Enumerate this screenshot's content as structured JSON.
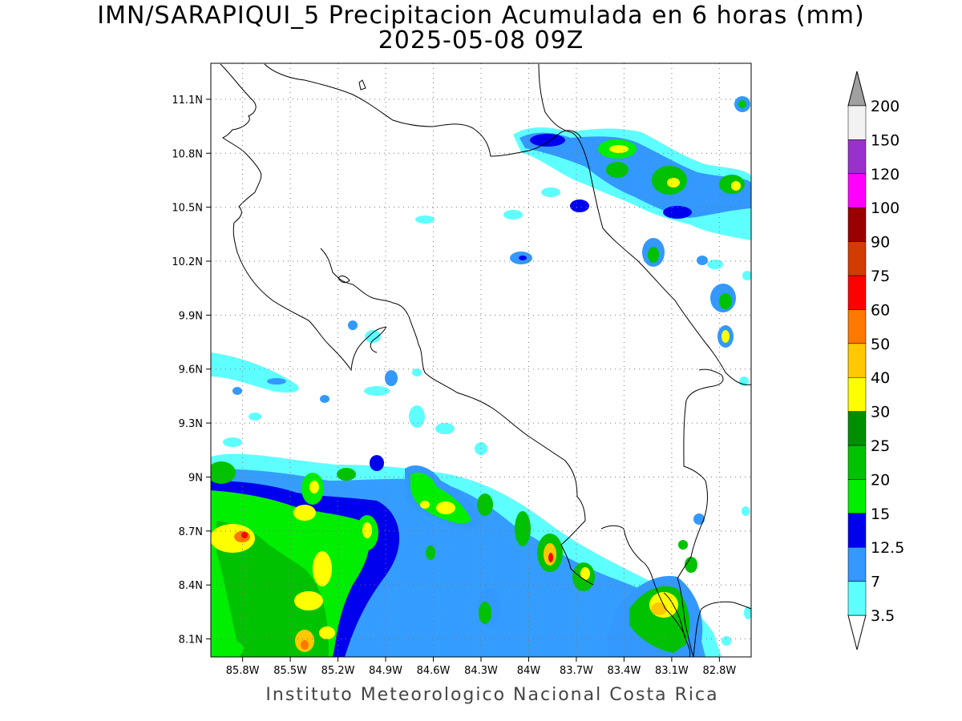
{
  "title": {
    "line1": "IMN/SARAPIQUI_5 Precipitacion Acumulada en 6 horas (mm)",
    "line2": "2025-05-08 09Z"
  },
  "footer": "Instituto Meteorologico Nacional Costa Rica",
  "axes": {
    "lon_range": [
      -86.0,
      -82.6
    ],
    "lat_range": [
      8.0,
      11.3
    ],
    "lon_ticks": [
      {
        "value": -85.8,
        "label": "85.8W"
      },
      {
        "value": -85.5,
        "label": "85.5W"
      },
      {
        "value": -85.2,
        "label": "85.2W"
      },
      {
        "value": -84.9,
        "label": "84.9W"
      },
      {
        "value": -84.6,
        "label": "84.6W"
      },
      {
        "value": -84.3,
        "label": "84.3W"
      },
      {
        "value": -84.0,
        "label": "84W"
      },
      {
        "value": -83.7,
        "label": "83.7W"
      },
      {
        "value": -83.4,
        "label": "83.4W"
      },
      {
        "value": -83.1,
        "label": "83.1W"
      },
      {
        "value": -82.8,
        "label": "82.8W"
      }
    ],
    "lat_ticks": [
      {
        "value": 8.1,
        "label": "8.1N"
      },
      {
        "value": 8.4,
        "label": "8.4N"
      },
      {
        "value": 8.7,
        "label": "8.7N"
      },
      {
        "value": 9.0,
        "label": "9N"
      },
      {
        "value": 9.3,
        "label": "9.3N"
      },
      {
        "value": 9.6,
        "label": "9.6N"
      },
      {
        "value": 9.9,
        "label": "9.9N"
      },
      {
        "value": 10.2,
        "label": "10.2N"
      },
      {
        "value": 10.5,
        "label": "10.5N"
      },
      {
        "value": 10.8,
        "label": "10.8N"
      },
      {
        "value": 11.1,
        "label": "11.1N"
      }
    ],
    "grid": "dotted"
  },
  "legend": {
    "levels": [
      "3.5",
      "7",
      "12.5",
      "15",
      "20",
      "25",
      "30",
      "40",
      "50",
      "60",
      "75",
      "90",
      "100",
      "120",
      "150",
      "200"
    ],
    "colors": [
      "#5effff",
      "#3398ff",
      "#0000ee",
      "#00ee00",
      "#00c200",
      "#008f00",
      "#ffff00",
      "#ffc800",
      "#ff7800",
      "#ff0000",
      "#d23c00",
      "#9a0000",
      "#ff00ff",
      "#9932cc",
      "#f2f2f2"
    ],
    "over_color": "#a0a0a0",
    "under_color": "#ffffff"
  },
  "precip_cells": [
    {
      "lon": -84.55,
      "lat": 8.85,
      "level": 6
    },
    {
      "lon": -84.45,
      "lat": 8.8,
      "level": 6
    },
    {
      "lon": -85.4,
      "lat": 8.9,
      "level": 6
    },
    {
      "lon": -85.45,
      "lat": 8.8,
      "level": 5
    },
    {
      "lon": -85.35,
      "lat": 8.5,
      "level": 7
    },
    {
      "lon": -85.3,
      "lat": 8.3,
      "level": 7
    },
    {
      "lon": -85.45,
      "lat": 8.2,
      "level": 6
    },
    {
      "lon": -85.4,
      "lat": 8.05,
      "level": 9
    },
    {
      "lon": -85.85,
      "lat": 8.68,
      "level": 10
    },
    {
      "lon": -85.05,
      "lat": 8.7,
      "level": 7
    },
    {
      "lon": -83.8,
      "lat": 8.55,
      "level": 10
    },
    {
      "lon": -83.6,
      "lat": 8.45,
      "level": 7
    },
    {
      "lon": -83.0,
      "lat": 8.3,
      "level": 7
    },
    {
      "lon": -83.15,
      "lat": 8.22,
      "level": 6
    },
    {
      "lon": -83.3,
      "lat": 10.85,
      "level": 6
    },
    {
      "lon": -82.95,
      "lat": 10.7,
      "level": 6
    },
    {
      "lon": -82.75,
      "lat": 10.65,
      "level": 7
    },
    {
      "lon": -82.75,
      "lat": 9.75,
      "level": 7
    },
    {
      "lon": -82.8,
      "lat": 9.98,
      "level": 5
    },
    {
      "lon": -83.75,
      "lat": 10.9,
      "level": 4
    }
  ]
}
